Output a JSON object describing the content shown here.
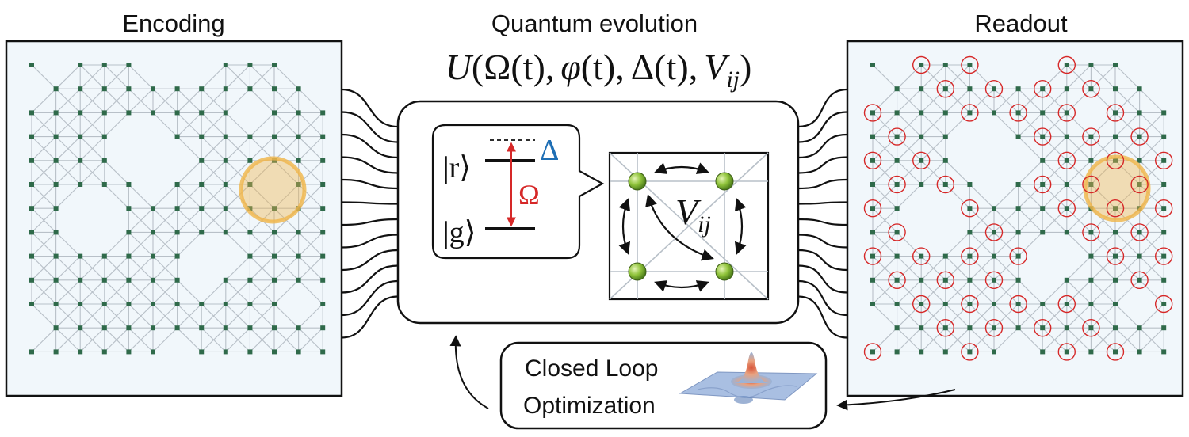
{
  "panels": {
    "encoding": {
      "title": "Encoding"
    },
    "evolution": {
      "title": "Quantum evolution"
    },
    "readout": {
      "title": "Readout"
    }
  },
  "equation": {
    "U": "U",
    "paren_open": "(",
    "omega": "Ω",
    "omega_arg": "(t)",
    "comma1": ",",
    "phi": "φ",
    "phi_arg": "(t)",
    "comma2": ",",
    "delta": "Δ",
    "delta_arg": "(t)",
    "comma3": ",",
    "V": "V",
    "V_sub": "ij",
    "paren_close": ")"
  },
  "levels": {
    "r_state": "|r⟩",
    "g_state": "|g⟩",
    "rabi": "Ω",
    "detuning": "Δ"
  },
  "interaction": {
    "V": "V",
    "sub": "ij"
  },
  "loop": {
    "line1": "Closed Loop",
    "line2": "Optimization"
  },
  "colors": {
    "atom": "#2f6a4a",
    "bond": "#b8c0c8",
    "highlight": "#f0b54a",
    "readout_ring": "#d62828",
    "rabi_arrow": "#d62828",
    "detuning": "#1f6fb5",
    "sphere": "#8fc33a",
    "panel_bg": "#f1f7fb"
  }
}
